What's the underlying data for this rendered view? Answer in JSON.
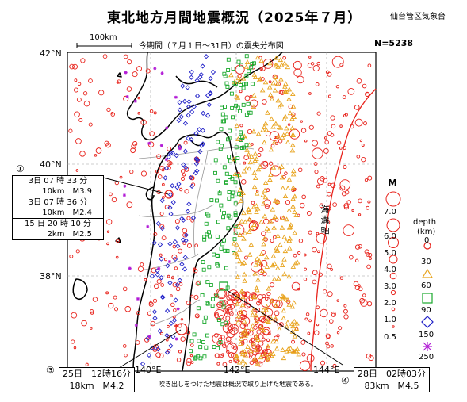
{
  "header": {
    "title": "東北地方月間地震概況（2025年７月）",
    "office": "仙台管区気象台",
    "subtitle": "今期間（７月１日～31日）の震央分布図",
    "count": "N=5238"
  },
  "map": {
    "scale_label": "100km",
    "lat_labels": [
      "42°N",
      "40°N",
      "38°N"
    ],
    "lon_labels": [
      "140°E",
      "142°E",
      "144°E"
    ],
    "trench_label": "海溝軸",
    "footnote": "吹き出しをつけた地震は概況で取り上げた地震である。"
  },
  "callouts": {
    "c1": {
      "num": "①",
      "lines": [
        {
          "a": "3日 07 時 33 分",
          "b": "10km　M3.9"
        },
        {
          "a": "3日 07 時 36 分",
          "b": "10km　M2.4"
        },
        {
          "a": "15 日 20 時 10 分",
          "b": "2km　M2.5"
        }
      ]
    },
    "c3": {
      "num": "③",
      "a": "25日　12時16分",
      "b": "18km　M4.2"
    },
    "c4": {
      "num": "④",
      "a": "28日　02時03分",
      "b": "83km　M4.5"
    }
  },
  "legend": {
    "magnitude_title": "M",
    "magnitudes": [
      "7.0",
      "6.0",
      "5.0",
      "4.0",
      "3.0",
      "2.0",
      "1.0",
      "0.5"
    ],
    "depth_title": "depth",
    "depth_unit": "(km)",
    "depths": [
      "0",
      "30",
      "60",
      "90",
      "150",
      "250"
    ],
    "colors": {
      "shallow": "#e8231c",
      "d30": "#e8a31c",
      "d60": "#19a82c",
      "d90": "#2222c8",
      "d150": "#b21bd6",
      "coast": "#000000",
      "grid": "#999999",
      "boundary": "#888888",
      "trench": "#e8231c"
    }
  }
}
